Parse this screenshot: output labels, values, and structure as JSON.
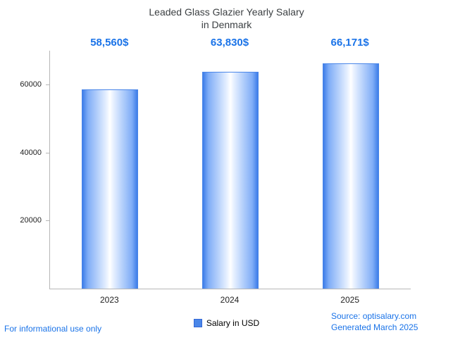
{
  "title": {
    "line1": "Leaded Glass Glazier Yearly Salary",
    "line2": "in Denmark"
  },
  "chart_data": {
    "type": "bar",
    "title": "Leaded Glass Glazier Yearly Salary in Denmark",
    "categories": [
      "2023",
      "2024",
      "2025"
    ],
    "series": [
      {
        "name": "Salary in USD",
        "values": [
          58560,
          63830,
          66171
        ]
      }
    ],
    "value_labels": [
      "58,560$",
      "63,830$",
      "66,171$"
    ],
    "xlabel": "",
    "ylabel": "",
    "ylim": [
      0,
      70000
    ],
    "yticks": [
      20000,
      40000,
      60000
    ],
    "grid": false,
    "legend_position": "bottom"
  },
  "legend": {
    "label": "Salary in USD"
  },
  "footer": {
    "left": "For informational use only",
    "source": "Source: optisalary.com",
    "generated": "Generated March 2025"
  },
  "colors": {
    "accent": "#1a73e8",
    "bar_edge": "#4a86e8",
    "bar_center": "#ffffff",
    "axis": "#b6b6b6",
    "title_text": "#3c4043"
  }
}
